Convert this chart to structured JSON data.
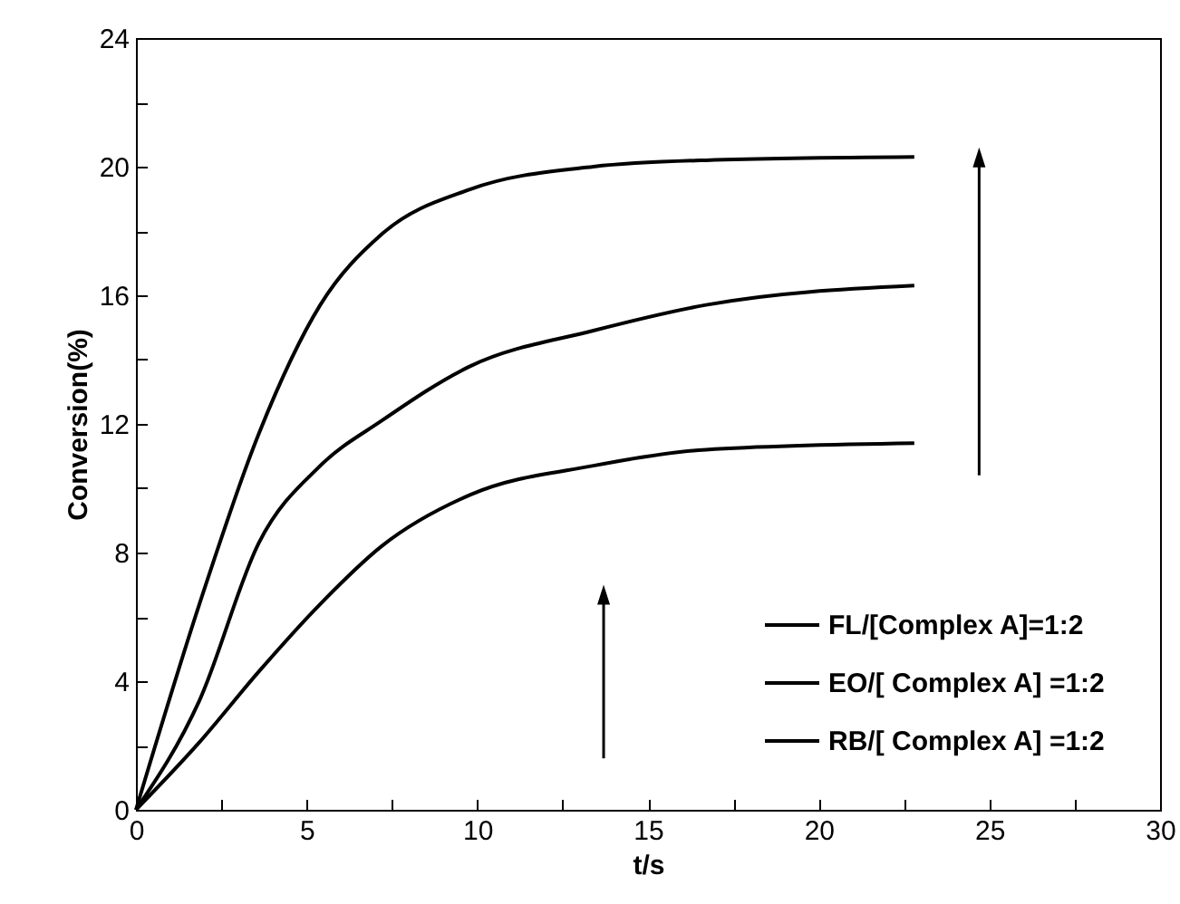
{
  "chart_data": {
    "type": "line",
    "xlabel": "t/s",
    "ylabel": "Conversion(%)",
    "x": [
      0,
      1.86,
      3.6,
      5.4,
      7.2,
      9.8,
      13.4,
      16.7,
      22.8
    ],
    "series": [
      {
        "name": "FL/[Complex A]=1:2",
        "color": "#000000",
        "values": [
          0,
          6.4,
          11.7,
          15.7,
          17.9,
          19.3,
          20.0,
          20.2,
          20.3
        ]
      },
      {
        "name": "EO/[ Complex A] =1:2",
        "color": "#000000",
        "values": [
          0,
          3.4,
          8.3,
          10.7,
          12.1,
          13.8,
          14.9,
          15.7,
          16.3
        ]
      },
      {
        "name": "RB/[ Complex A] =1:2",
        "color": "#000000",
        "values": [
          0,
          2.1,
          4.3,
          6.4,
          8.2,
          9.8,
          10.7,
          11.2,
          11.4
        ]
      }
    ],
    "xlim": [
      0,
      30
    ],
    "ylim": [
      0,
      24
    ],
    "xticks": [
      0,
      {
        "value": 2.5,
        "label": null
      },
      5,
      {
        "value": 7.5,
        "label": null
      },
      10,
      {
        "value": 12.5,
        "label": null
      },
      15,
      {
        "value": 17.5,
        "label": null
      },
      20,
      {
        "value": 22.5,
        "label": null
      },
      25,
      {
        "value": 27.5,
        "label": null
      },
      30
    ],
    "yticks": [
      0,
      {
        "value": 2,
        "label": null
      },
      4,
      {
        "value": 6,
        "label": null
      },
      8,
      {
        "value": 10,
        "label": null
      },
      12,
      {
        "value": 14,
        "label": null
      },
      16,
      {
        "value": 18,
        "label": null
      },
      20,
      {
        "value": 22,
        "label": null
      },
      24
    ],
    "legend": "bottom right",
    "marker": "none",
    "line_style": "solid",
    "grid": false
  }
}
